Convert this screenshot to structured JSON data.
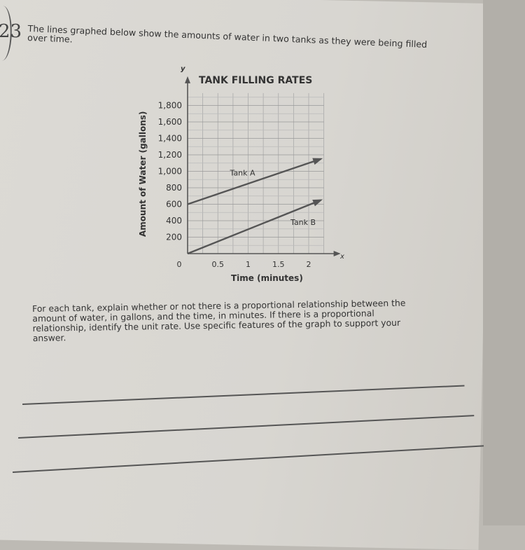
{
  "question": {
    "number": "23",
    "intro": "The lines graphed below show the amounts of water in two tanks as they were being filled over time.",
    "prompt": "For each tank, explain whether or not there is a proportional relationship between the amount of water, in gallons, and the time, in minutes. If there is a proportional relationship, identify the unit rate. Use specific features of the graph to support your answer."
  },
  "chart_data": {
    "type": "line",
    "title": "TANK FILLING RATES",
    "xlabel": "Time (minutes)",
    "ylabel": "Amount of Water (gallons)",
    "x_axis_symbol": "x",
    "y_axis_symbol": "y",
    "xlim": [
      0,
      2.25
    ],
    "ylim": [
      0,
      1950
    ],
    "x_ticks": [
      "0",
      "0.5",
      "1",
      "1.5",
      "2"
    ],
    "y_ticks": [
      "200",
      "400",
      "600",
      "800",
      "1,000",
      "1,200",
      "1,400",
      "1,600",
      "1,800"
    ],
    "grid": true,
    "series": [
      {
        "name": "Tank A",
        "x": [
          0,
          2.2
        ],
        "y": [
          600,
          1150
        ],
        "color": "#555555"
      },
      {
        "name": "Tank B",
        "x": [
          0,
          2.2
        ],
        "y": [
          0,
          650
        ],
        "color": "#555555"
      }
    ]
  }
}
